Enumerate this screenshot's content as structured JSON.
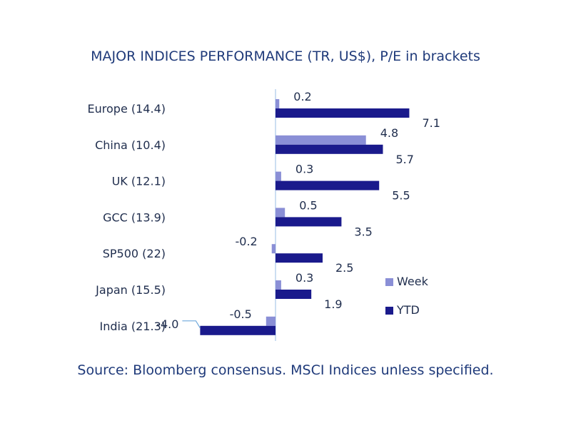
{
  "chart_data": {
    "type": "bar",
    "orientation": "horizontal",
    "title": "MAJOR INDICES PERFORMANCE (TR, US$), P/E in brackets",
    "categories": [
      "Europe (14.4)",
      "China (10.4)",
      "UK (12.1)",
      "GCC (13.9)",
      "SP500 (22)",
      "Japan (15.5)",
      "India (21.3)"
    ],
    "series": [
      {
        "name": "Week",
        "color": "#8a8fd6",
        "values": [
          0.2,
          4.8,
          0.3,
          0.5,
          -0.2,
          0.3,
          -0.5
        ],
        "labels": [
          "0.2",
          "4.8",
          "0.3",
          "0.5",
          "-0.2",
          "0.3",
          "-0.5"
        ]
      },
      {
        "name": "YTD",
        "color": "#1a1a8c",
        "values": [
          7.1,
          5.7,
          5.5,
          3.5,
          2.5,
          1.9,
          -4.0
        ],
        "labels": [
          "7.1",
          "5.7",
          "5.5",
          "3.5",
          "2.5",
          "1.9",
          "-4.0"
        ]
      }
    ],
    "xlim": [
      -4.5,
      8
    ],
    "legend_position": "right",
    "source": "Source: Bloomberg consensus. MSCI Indices unless specified."
  }
}
